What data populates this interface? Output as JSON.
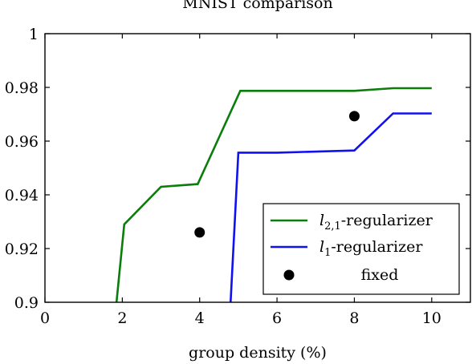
{
  "chart_data": {
    "type": "line",
    "title": "MNIST comparison",
    "xlabel": "group density (%)",
    "ylabel": "",
    "xlim": [
      0,
      11
    ],
    "ylim": [
      0.9,
      1.0
    ],
    "x_ticks": [
      0,
      2,
      4,
      6,
      8,
      10
    ],
    "x_tick_labels": [
      "0",
      "2",
      "4",
      "6",
      "8",
      "10"
    ],
    "y_ticks": [
      0.9,
      0.92,
      0.94,
      0.96,
      0.98,
      1.0
    ],
    "y_tick_labels": [
      "0.9",
      "0.92",
      "0.94",
      "0.96",
      "0.98",
      "1"
    ],
    "grid": false,
    "legend_position": "bottom-right",
    "series": [
      {
        "name": "l2,1-regularizer",
        "legend_main": "l",
        "legend_sub": "2,1",
        "legend_rest": "-regularizer",
        "color": "#0a7d0a",
        "style": "line",
        "x": [
          1.85,
          2.05,
          3.0,
          3.95,
          5.05,
          8.0,
          9.0,
          10.0
        ],
        "y": [
          0.9,
          0.929,
          0.943,
          0.944,
          0.9787,
          0.9787,
          0.9797,
          0.9797
        ]
      },
      {
        "name": "l1-regularizer",
        "legend_main": "l",
        "legend_sub": "1",
        "legend_rest": "-regularizer",
        "color": "#1010f0",
        "style": "line",
        "x": [
          4.8,
          5.0,
          6.0,
          8.0,
          9.0,
          10.0
        ],
        "y": [
          0.9,
          0.9557,
          0.9557,
          0.9565,
          0.9703,
          0.9703
        ]
      },
      {
        "name": "fixed",
        "legend_main": "fixed",
        "legend_sub": "",
        "legend_rest": "",
        "color": "#000000",
        "style": "marker",
        "x": [
          4.0,
          8.0
        ],
        "y": [
          0.926,
          0.9693
        ]
      }
    ]
  }
}
